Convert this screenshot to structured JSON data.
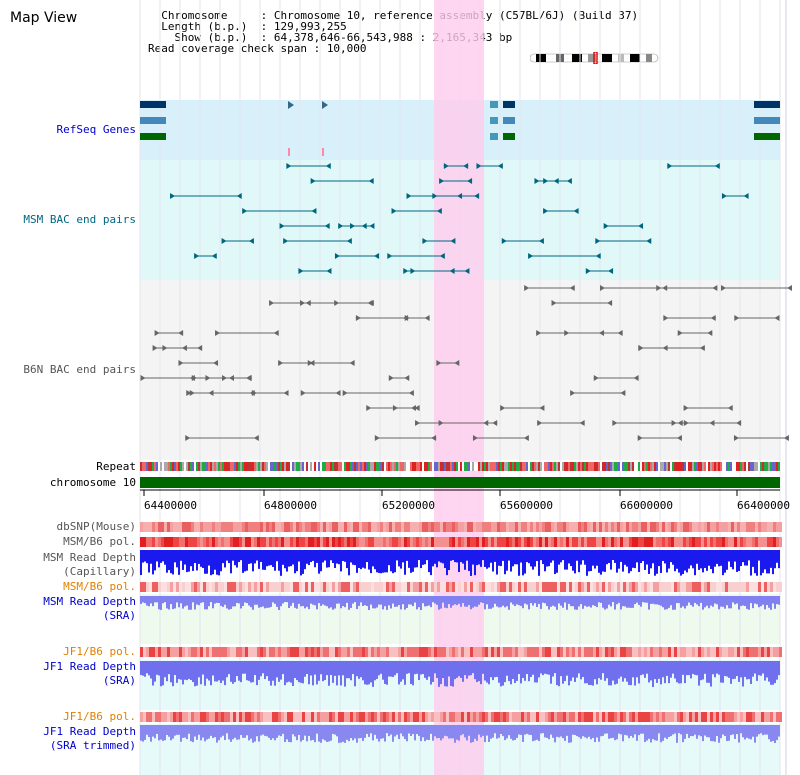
{
  "title": "Map View",
  "info": {
    "chromosome_key": "Chromosome",
    "chromosome_val": "Chromosome 10, reference assembly (C57BL/6J) (Build 37)",
    "length_key": "Length (b.p.)",
    "length_val": "129,993,255",
    "show_key": "Show (b.p.)",
    "show_val": "64,378,646-66,543,988 : 2,165,343 bp",
    "coverage_key": "Read coverage check span",
    "coverage_val": "10,000"
  },
  "tracks": {
    "refseq": "RefSeq Genes",
    "msm_bac": "MSM BAC end pairs",
    "b6n_bac": "B6N BAC end pairs",
    "repeat": "Repeat",
    "chromosome": "chromosome 10",
    "dbsnp": "dbSNP(Mouse)",
    "msm_b6_pol": "MSM/B6 pol.",
    "msm_depth_cap": "MSM Read Depth",
    "msm_depth_cap2": "(Capillary)",
    "msm_b6_pol2": "MSM/B6 pol.",
    "msm_depth_sra": "MSM Read Depth",
    "msm_depth_sra2": "(SRA)",
    "jf1_pol": "JF1/B6 pol.",
    "jf1_depth": "JF1 Read Depth",
    "jf1_depth2": "(SRA)",
    "jf1_pol_trim": "JF1/B6 pol.",
    "jf1_depth_trim": "JF1 Read Depth",
    "jf1_depth_trim2": "(SRA trimmed)"
  },
  "axis": {
    "ticks": [
      "64400000",
      "64800000",
      "65200000",
      "65600000",
      "66000000",
      "66400000"
    ]
  },
  "colors": {
    "label_blue": "#0000cc",
    "label_teal": "#006680",
    "label_gray": "#555555",
    "label_orange": "#e08000",
    "highlight": "#ffccee",
    "refseq_bg": "#d8f0fa",
    "msm_bg": "#e0f8f8",
    "b6n_bg": "#f4f4f4"
  }
}
